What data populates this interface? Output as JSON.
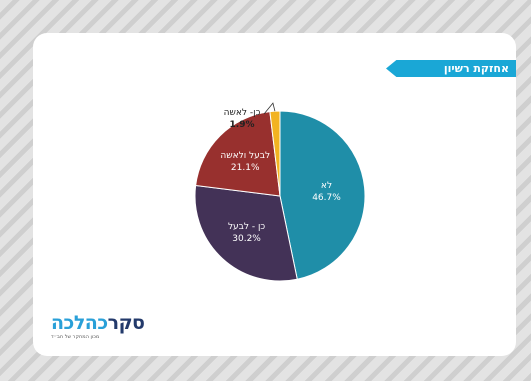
{
  "banner": {
    "title": "אחזקת רשיון"
  },
  "logo": {
    "brand_dark": "סקר",
    "brand_light": "כהלכה",
    "tagline": "מכון המחקר של חב״ד",
    "accent": "#2aa0d8",
    "dark": "#233a6b"
  },
  "chart_data": {
    "type": "pie",
    "title": "",
    "slices": [
      {
        "label": "לא",
        "value": 46.7,
        "display": "46.7%",
        "color": "#1f8ea8"
      },
      {
        "label": "כן - לבעל",
        "value": 30.2,
        "display": "30.2%",
        "color": "#433257"
      },
      {
        "label": "לבעל ולאשה",
        "value": 21.1,
        "display": "21.1%",
        "color": "#98302e"
      },
      {
        "label": "כן- לאשה",
        "value": 1.9,
        "display": "1.9%",
        "color": "#f2b321"
      }
    ],
    "start": "12 o'clock",
    "direction": "clockwise"
  }
}
